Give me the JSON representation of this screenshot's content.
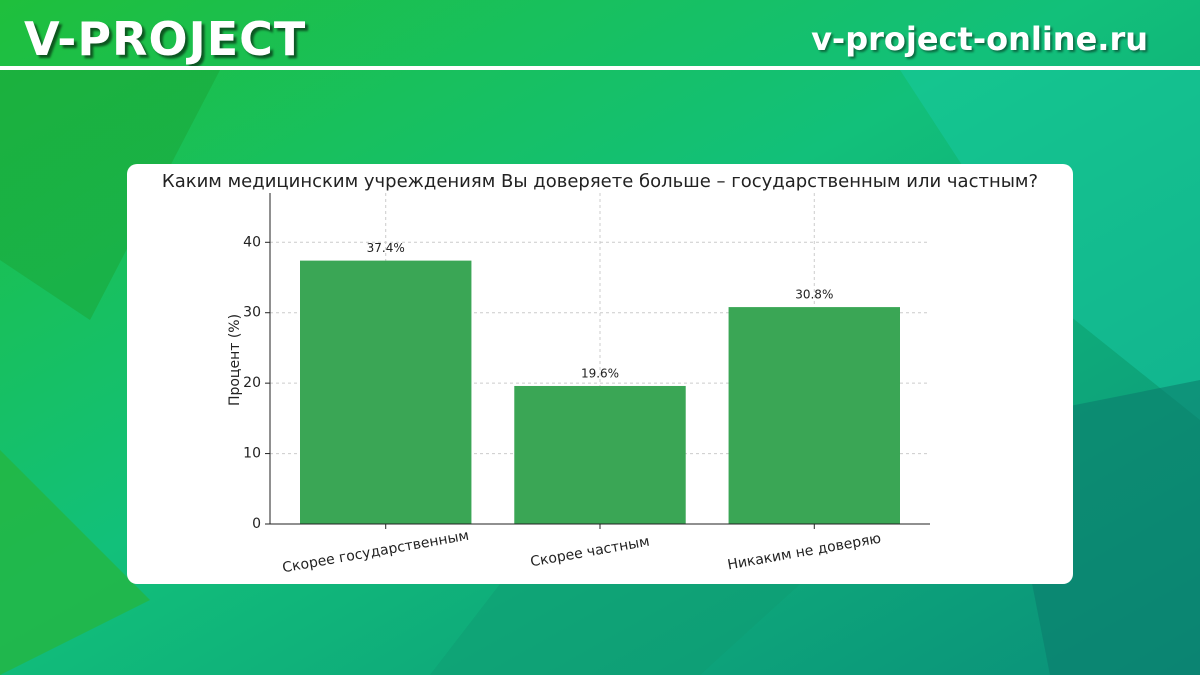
{
  "header": {
    "brand": "V-PROJECT",
    "site": "v-project-online.ru"
  },
  "chart_data": {
    "type": "bar",
    "title": "Каким медицинским учреждениям Вы доверяете больше – государственным или частным?",
    "y_label": "Процент (%)",
    "categories": [
      "Скорее государственным",
      "Скорее частным",
      "Никаким не доверяю"
    ],
    "values": [
      37.4,
      19.6,
      30.8
    ],
    "value_labels": [
      "37.4%",
      "19.6%",
      "30.8%"
    ],
    "color": "#3aa655",
    "ylim": [
      0,
      47
    ],
    "yticks": [
      0,
      10,
      20,
      30,
      40
    ],
    "grid": true
  }
}
